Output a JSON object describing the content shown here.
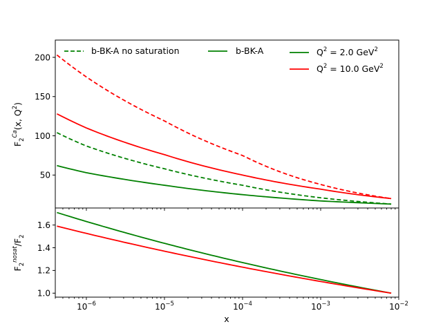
{
  "chart_data": [
    {
      "type": "line",
      "panel": "top",
      "xscale": "log",
      "xlim": [
        4e-07,
        0.01
      ],
      "ylim": [
        8,
        222
      ],
      "yticks": [
        50,
        100,
        150,
        200
      ],
      "ylabel": {
        "main": "F",
        "sub": "2",
        "sup": "Ca",
        "rest": "(x, Q",
        "sup2": "2",
        "end": ")"
      },
      "xticks": [
        {
          "value": 1e-06,
          "base": "10",
          "exp": "−6"
        },
        {
          "value": 1e-05,
          "base": "10",
          "exp": "−5"
        },
        {
          "value": 0.0001,
          "base": "10",
          "exp": "−4"
        },
        {
          "value": 0.001,
          "base": "10",
          "exp": "−3"
        },
        {
          "value": 0.01,
          "base": "10",
          "exp": "−2"
        }
      ],
      "series": [
        {
          "name": "Q2=10 no saturation",
          "color": "#ff0000",
          "dash": true,
          "x": [
            4.2e-07,
            1e-06,
            1e-05,
            0.0001,
            0.001,
            0.008
          ],
          "y": [
            203,
            175,
            119,
            75,
            38,
            20
          ]
        },
        {
          "name": "Q2=10 b-BK-A",
          "color": "#ff0000",
          "dash": false,
          "x": [
            4.2e-07,
            1e-06,
            1e-05,
            0.0001,
            0.001,
            0.008
          ],
          "y": [
            128,
            110,
            76,
            50,
            32,
            20
          ]
        },
        {
          "name": "Q2=2 no saturation",
          "color": "#008000",
          "dash": true,
          "x": [
            4.2e-07,
            1e-06,
            1e-05,
            0.0001,
            0.001,
            0.008
          ],
          "y": [
            104,
            87,
            58,
            37,
            21,
            13
          ]
        },
        {
          "name": "Q2=2 b-BK-A",
          "color": "#008000",
          "dash": false,
          "x": [
            4.2e-07,
            1e-06,
            1e-05,
            0.0001,
            0.001,
            0.008
          ],
          "y": [
            62,
            53,
            37,
            25,
            17,
            13
          ]
        }
      ],
      "legend": {
        "location": "top",
        "entries": [
          {
            "label": "b-BK-A no saturation",
            "color": "#008000",
            "dash": true
          },
          {
            "label": "b-BK-A",
            "color": "#008000",
            "dash": false
          },
          {
            "label_main": "Q",
            "label_sup": "2",
            "label_mid": " = 2.0 GeV",
            "label_sup2": "2",
            "color": "#008000",
            "dash": false
          },
          {
            "label_main": "Q",
            "label_sup": "2",
            "label_mid": " = 10.0 GeV",
            "label_sup2": "2",
            "color": "#ff0000",
            "dash": false
          }
        ]
      }
    },
    {
      "type": "line",
      "panel": "bottom",
      "xscale": "log",
      "xlim": [
        4e-07,
        0.01
      ],
      "ylim": [
        0.965,
        1.75
      ],
      "yticks": [
        1.0,
        1.2,
        1.4,
        1.6
      ],
      "ytick_labels": [
        "1.0",
        "1.2",
        "1.4",
        "1.6"
      ],
      "ylabel": {
        "main": "F",
        "sub": "2",
        "sup": "nosat",
        "rest": "/F",
        "sub2": "2"
      },
      "xlabel": "x",
      "series": [
        {
          "name": "Q2=2 ratio",
          "color": "#008000",
          "dash": false,
          "x": [
            4.2e-07,
            0.008
          ],
          "y": [
            1.71,
            1.0
          ]
        },
        {
          "name": "Q2=10 ratio",
          "color": "#ff0000",
          "dash": false,
          "x": [
            4.2e-07,
            0.008
          ],
          "y": [
            1.59,
            1.0
          ]
        }
      ]
    }
  ]
}
